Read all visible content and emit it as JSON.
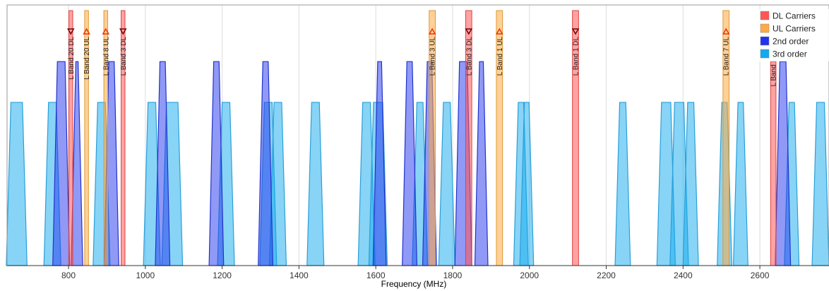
{
  "chart_data": {
    "type": "area",
    "title": "",
    "xlabel": "Frequency (MHz)",
    "ylabel": "",
    "xlim": [
      640,
      2780
    ],
    "ylim": [
      0,
      1
    ],
    "x_ticks": [
      800,
      1000,
      1200,
      1400,
      1600,
      1800,
      2000,
      2200,
      2400,
      2600
    ],
    "grid": "vertical",
    "legend_position": "top-right",
    "legend": [
      {
        "name": "DL Carriers",
        "color": "#ff5555"
      },
      {
        "name": "UL Carriers",
        "color": "#ffaa44"
      },
      {
        "name": "2nd order",
        "color": "#2233ee"
      },
      {
        "name": "3rd order",
        "color": "#11aaee"
      }
    ],
    "carriers": [
      {
        "label": "L Band 20 DL",
        "type": "DL",
        "freq": 806,
        "width": 10,
        "height": 1.0
      },
      {
        "label": "L Band 20 UL",
        "type": "UL",
        "freq": 847,
        "width": 10,
        "height": 1.0
      },
      {
        "label": "L Band 8 UL",
        "type": "UL",
        "freq": 897,
        "width": 10,
        "height": 1.0
      },
      {
        "label": "L Band 3 DL",
        "type": "DL",
        "freq": 942,
        "width": 10,
        "height": 1.0
      },
      {
        "label": "L Band 3 UL",
        "type": "UL",
        "freq": 1747,
        "width": 16,
        "height": 1.0
      },
      {
        "label": "L Band 3 DL",
        "type": "DL",
        "freq": 1842,
        "width": 16,
        "height": 1.0
      },
      {
        "label": "L Band 1 UL",
        "type": "UL",
        "freq": 1922,
        "width": 16,
        "height": 1.0
      },
      {
        "label": "L Band 1 DL",
        "type": "DL",
        "freq": 2120,
        "width": 16,
        "height": 1.0
      },
      {
        "label": "L Band 7 UL",
        "type": "UL",
        "freq": 2512,
        "width": 16,
        "height": 1.0
      },
      {
        "label": "L Band",
        "type": "DL",
        "freq": 2635,
        "width": 14,
        "height": 0.8
      }
    ],
    "second_order": [
      {
        "freq": 781,
        "width": 20,
        "height": 0.8
      },
      {
        "freq": 822,
        "width": 6,
        "height": 0.8
      },
      {
        "freq": 912,
        "width": 14,
        "height": 0.8
      },
      {
        "freq": 1045,
        "width": 14,
        "height": 0.8
      },
      {
        "freq": 1185,
        "width": 14,
        "height": 0.8
      },
      {
        "freq": 1313,
        "width": 14,
        "height": 0.8
      },
      {
        "freq": 1610,
        "width": 10,
        "height": 0.8
      },
      {
        "freq": 1688,
        "width": 14,
        "height": 0.8
      },
      {
        "freq": 1740,
        "width": 12,
        "height": 0.8
      },
      {
        "freq": 1828,
        "width": 20,
        "height": 0.8
      },
      {
        "freq": 1875,
        "width": 10,
        "height": 0.8
      },
      {
        "freq": 2660,
        "width": 16,
        "height": 0.8
      }
    ],
    "third_order": [
      {
        "freq": 665,
        "width": 30,
        "height": 0.64
      },
      {
        "freq": 758,
        "width": 20,
        "height": 0.64
      },
      {
        "freq": 886,
        "width": 20,
        "height": 0.64
      },
      {
        "freq": 1017,
        "width": 20,
        "height": 0.64
      },
      {
        "freq": 1070,
        "width": 30,
        "height": 0.64
      },
      {
        "freq": 1210,
        "width": 20,
        "height": 0.64
      },
      {
        "freq": 1320,
        "width": 20,
        "height": 0.64
      },
      {
        "freq": 1345,
        "width": 20,
        "height": 0.64
      },
      {
        "freq": 1443,
        "width": 20,
        "height": 0.64
      },
      {
        "freq": 1576,
        "width": 20,
        "height": 0.64
      },
      {
        "freq": 1606,
        "width": 24,
        "height": 0.64
      },
      {
        "freq": 1715,
        "width": 16,
        "height": 0.64
      },
      {
        "freq": 1785,
        "width": 18,
        "height": 0.64
      },
      {
        "freq": 1978,
        "width": 14,
        "height": 0.64
      },
      {
        "freq": 1993,
        "width": 12,
        "height": 0.64
      },
      {
        "freq": 2243,
        "width": 16,
        "height": 0.64
      },
      {
        "freq": 2356,
        "width": 24,
        "height": 0.64
      },
      {
        "freq": 2390,
        "width": 24,
        "height": 0.64
      },
      {
        "freq": 2420,
        "width": 16,
        "height": 0.64
      },
      {
        "freq": 2508,
        "width": 14,
        "height": 0.64
      },
      {
        "freq": 2550,
        "width": 14,
        "height": 0.64
      },
      {
        "freq": 2683,
        "width": 14,
        "height": 0.64
      },
      {
        "freq": 2758,
        "width": 20,
        "height": 0.64
      }
    ]
  }
}
